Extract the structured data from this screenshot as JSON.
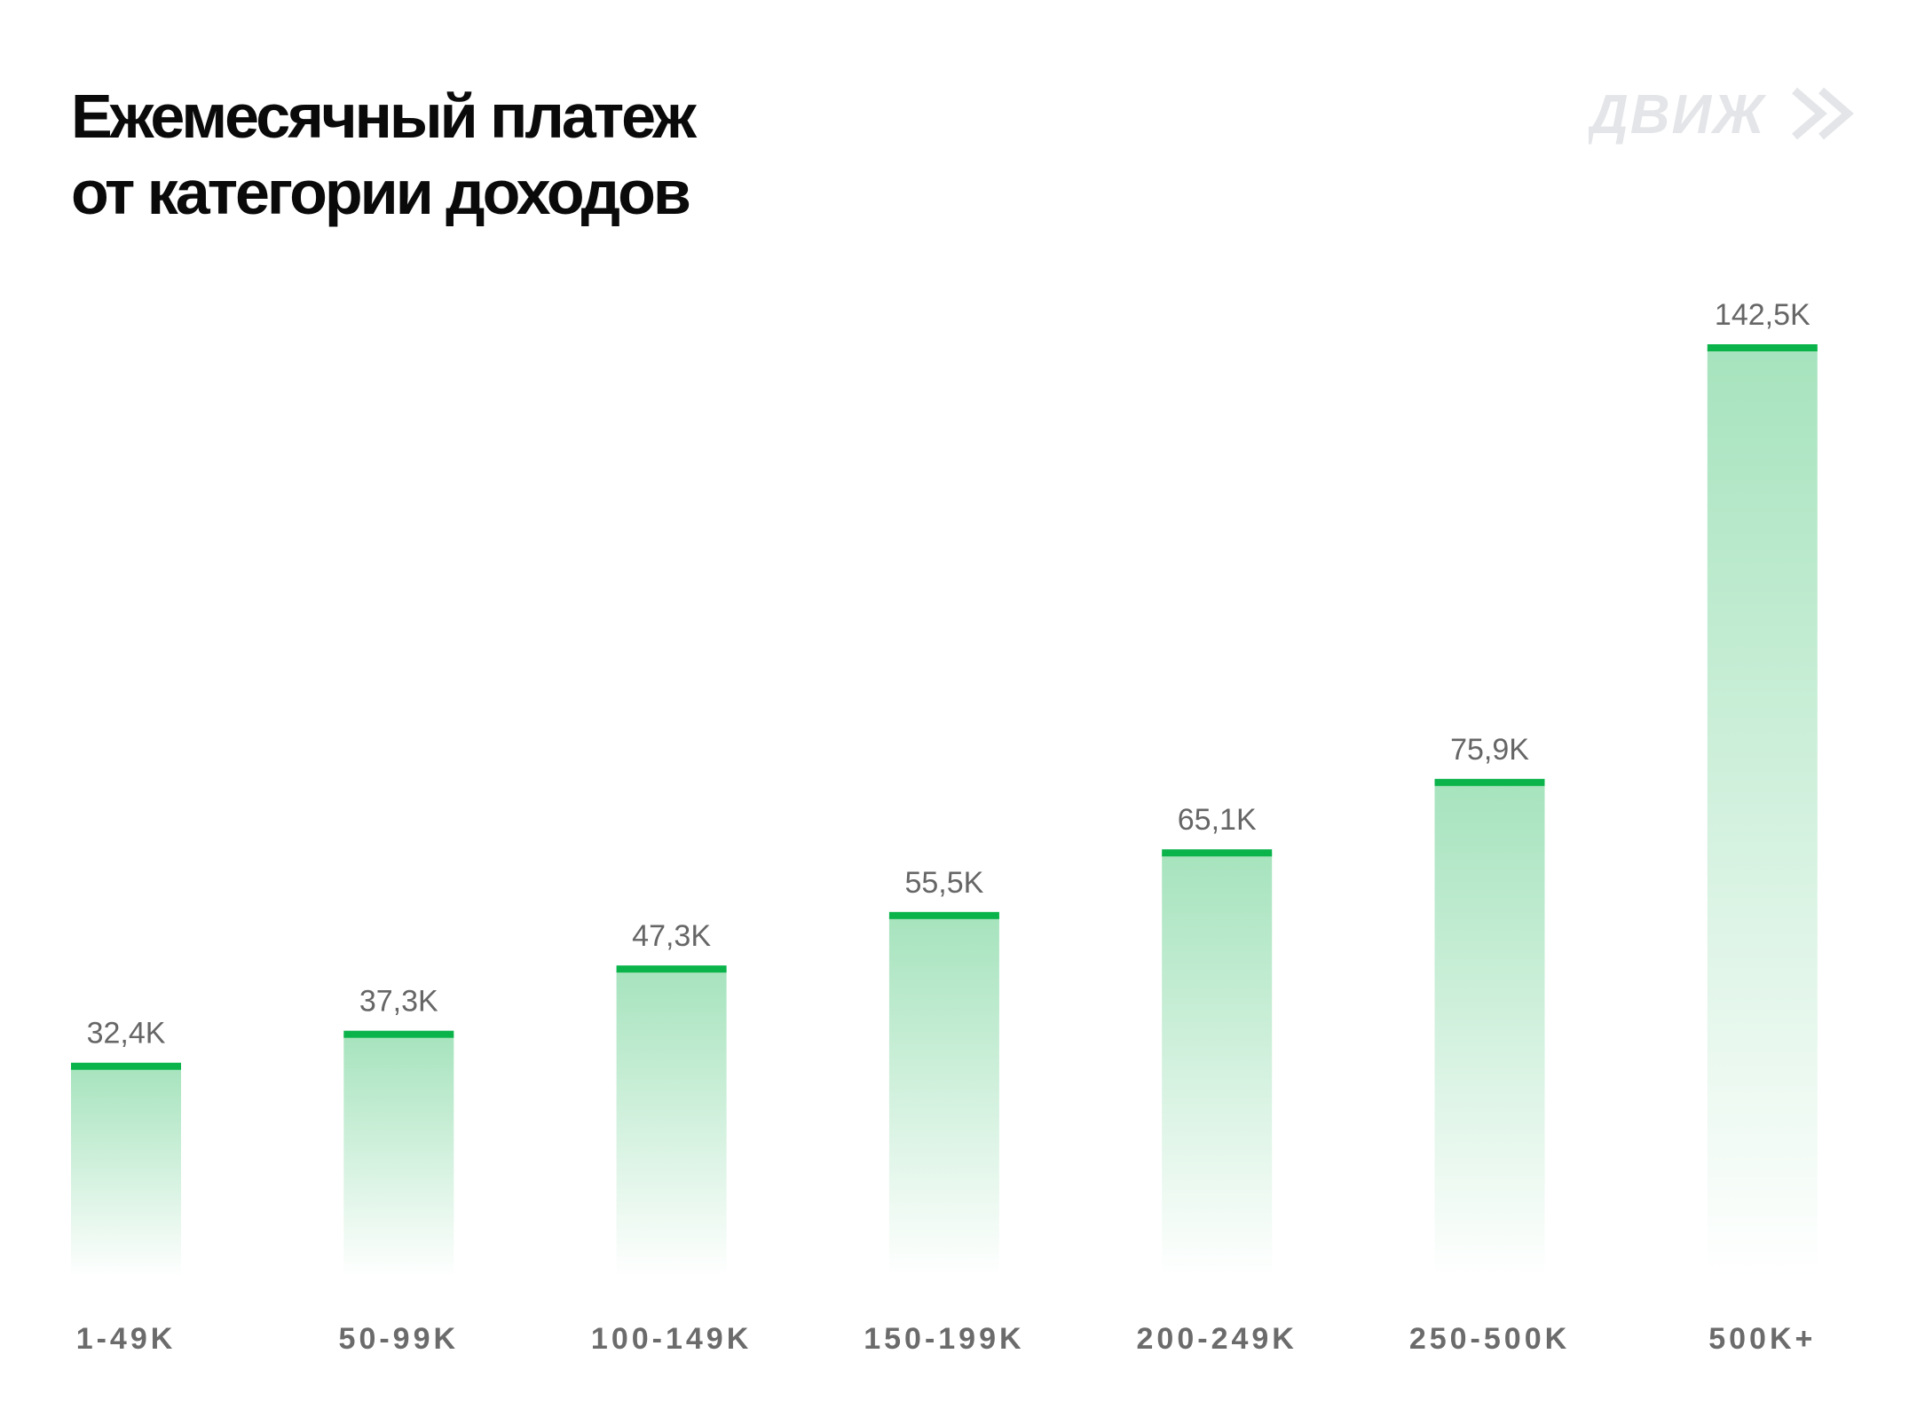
{
  "title": {
    "line1": "Ежемесячный платеж",
    "line2": "от категории доходов"
  },
  "logo": {
    "text": "ДВИЖ",
    "icon": "double-chevron-right-icon"
  },
  "colors": {
    "accent": "#0bb34b",
    "bar_top": "#a8e4bf",
    "label": "#666666",
    "category": "#6b6b6b",
    "logo": "#e3e5e8"
  },
  "chart_data": {
    "type": "bar",
    "categories": [
      "1-49K",
      "50-99K",
      "100-149K",
      "150-199K",
      "200-249K",
      "250-500K",
      "500K+"
    ],
    "values": [
      32.4,
      37.3,
      47.3,
      55.5,
      65.1,
      75.9,
      142.5
    ],
    "value_labels": [
      "32,4K",
      "37,3K",
      "47,3K",
      "55,5K",
      "65,1K",
      "75,9K",
      "142,5K"
    ],
    "title": "Ежемесячный платеж от категории доходов",
    "xlabel": "",
    "ylabel": "",
    "ylim": [
      0,
      142.5
    ],
    "grid": false,
    "legend": "none"
  }
}
